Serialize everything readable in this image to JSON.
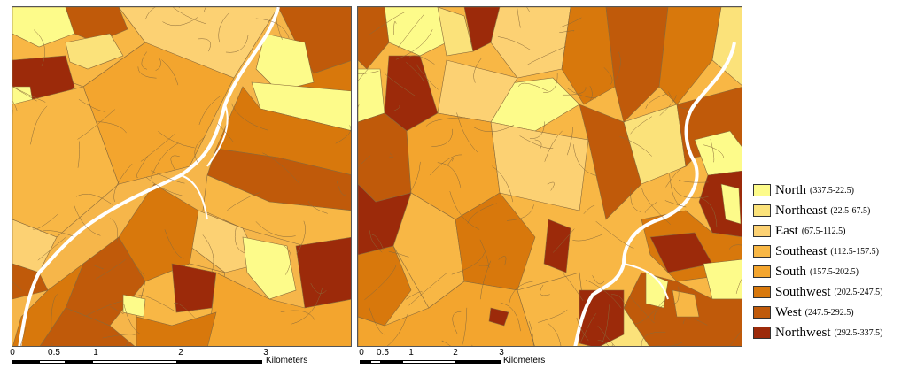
{
  "maps": {
    "left": {
      "scale": {
        "ticks": [
          "0",
          "0.5",
          "1",
          "2",
          "3"
        ],
        "unit": "Kilometers"
      }
    },
    "right": {
      "scale": {
        "ticks": [
          "0",
          "0.5",
          "1",
          "2",
          "3"
        ],
        "unit": "Kilometers"
      }
    }
  },
  "legend": {
    "items": [
      {
        "name": "North",
        "range": "(337.5-22.5)",
        "color": "#fdfb8a"
      },
      {
        "name": "Northeast",
        "range": "(22.5-67.5)",
        "color": "#fbe27a"
      },
      {
        "name": "East",
        "range": "(67.5-112.5)",
        "color": "#fcd173"
      },
      {
        "name": "Southeast",
        "range": "(112.5-157.5)",
        "color": "#f8b745"
      },
      {
        "name": "South",
        "range": "(157.5-202.5)",
        "color": "#f3a52e"
      },
      {
        "name": "Southwest",
        "range": "(202.5-247.5)",
        "color": "#d8780c"
      },
      {
        "name": "West",
        "range": "(247.5-292.5)",
        "color": "#c05a0a"
      },
      {
        "name": "Northwest",
        "range": "(292.5-337.5)",
        "color": "#9c2a0a"
      }
    ]
  },
  "stream_color": "#ffffff"
}
